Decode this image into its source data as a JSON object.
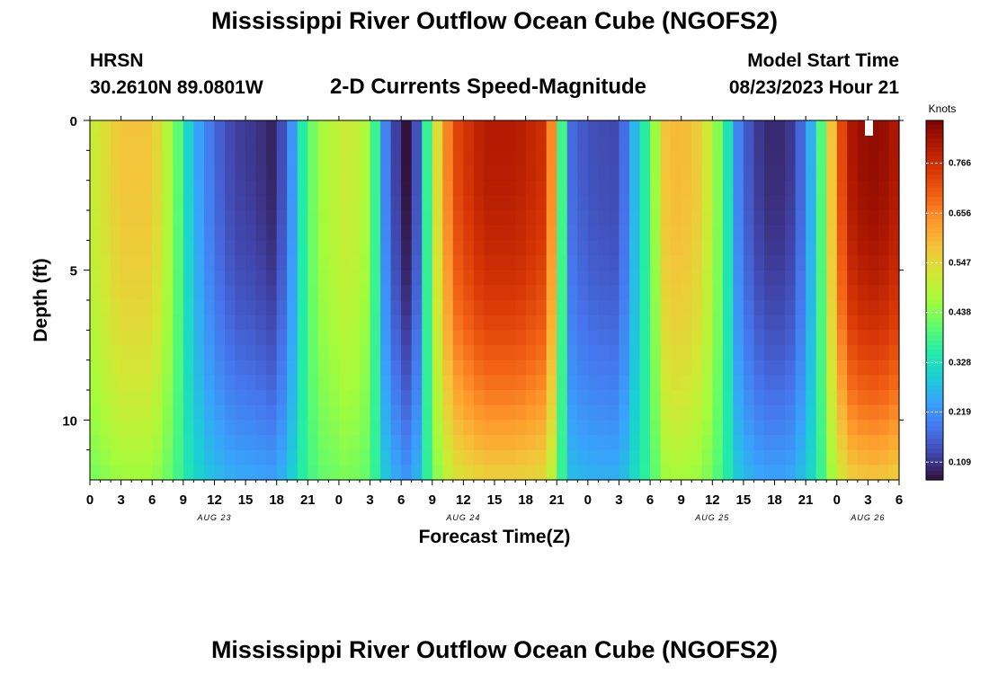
{
  "header": {
    "title": "Mississippi River Outflow Ocean Cube (NGOFS2)",
    "station": "HRSN",
    "latlon": "30.2610N  89.0801W",
    "subtitle": "2-D Currents Speed-Magnitude",
    "model_label": "Model Start Time",
    "model_time": "08/23/2023 Hour 21"
  },
  "footer": {
    "title": "Mississippi River Outflow Ocean Cube (NGOFS2)"
  },
  "colors": {
    "colormap": [
      "#30123b",
      "#4145ab",
      "#4675ed",
      "#39a2fc",
      "#1bcfd4",
      "#24eca6",
      "#61fc6c",
      "#a4fc3b",
      "#d1e834",
      "#f3c63a",
      "#fe9b2d",
      "#f36315",
      "#d93806",
      "#b11901",
      "#7a0402"
    ]
  },
  "chart_data": {
    "type": "heatmap",
    "title": "2-D Currents Speed-Magnitude",
    "xlabel": "Forecast Time(Z)",
    "ylabel": "Depth (ft)",
    "x_range_hours": [
      0,
      78
    ],
    "y_range_ft": [
      0,
      12
    ],
    "x_ticks": [
      {
        "h": 0,
        "label": "0"
      },
      {
        "h": 3,
        "label": "3"
      },
      {
        "h": 6,
        "label": "6"
      },
      {
        "h": 9,
        "label": "9"
      },
      {
        "h": 12,
        "label": "12"
      },
      {
        "h": 15,
        "label": "15"
      },
      {
        "h": 18,
        "label": "18"
      },
      {
        "h": 21,
        "label": "21"
      },
      {
        "h": 24,
        "label": "0"
      },
      {
        "h": 27,
        "label": "3"
      },
      {
        "h": 30,
        "label": "6"
      },
      {
        "h": 33,
        "label": "9"
      },
      {
        "h": 36,
        "label": "12"
      },
      {
        "h": 39,
        "label": "15"
      },
      {
        "h": 42,
        "label": "18"
      },
      {
        "h": 45,
        "label": "21"
      },
      {
        "h": 48,
        "label": "0"
      },
      {
        "h": 51,
        "label": "3"
      },
      {
        "h": 54,
        "label": "6"
      },
      {
        "h": 57,
        "label": "9"
      },
      {
        "h": 60,
        "label": "12"
      },
      {
        "h": 63,
        "label": "15"
      },
      {
        "h": 66,
        "label": "18"
      },
      {
        "h": 69,
        "label": "21"
      },
      {
        "h": 72,
        "label": "0"
      },
      {
        "h": 75,
        "label": "3"
      },
      {
        "h": 78,
        "label": "6"
      }
    ],
    "date_labels": [
      {
        "h": 12,
        "label": "AUG 23"
      },
      {
        "h": 36,
        "label": "AUG 24"
      },
      {
        "h": 60,
        "label": "AUG 25"
      },
      {
        "h": 75,
        "label": "AUG 26"
      }
    ],
    "y_ticks": [
      {
        "v": 0,
        "label": "0"
      },
      {
        "v": 5,
        "label": "5"
      },
      {
        "v": 10,
        "label": "10"
      }
    ],
    "colorbar": {
      "unit": "Knots",
      "min": 0.07,
      "max": 0.86,
      "ticks": [
        0.109,
        0.219,
        0.328,
        0.438,
        0.547,
        0.656,
        0.766
      ]
    },
    "surface_profile": [
      [
        0,
        0.5
      ],
      [
        3,
        0.58
      ],
      [
        6,
        0.58
      ],
      [
        8,
        0.45
      ],
      [
        10,
        0.26
      ],
      [
        12,
        0.17
      ],
      [
        14,
        0.12
      ],
      [
        16,
        0.11
      ],
      [
        17.5,
        0.09
      ],
      [
        19,
        0.16
      ],
      [
        20.5,
        0.35
      ],
      [
        22,
        0.46
      ],
      [
        25,
        0.52
      ],
      [
        27,
        0.46
      ],
      [
        28.5,
        0.2
      ],
      [
        29.5,
        0.12
      ],
      [
        30.5,
        0.07
      ],
      [
        31.5,
        0.14
      ],
      [
        33,
        0.48
      ],
      [
        35,
        0.72
      ],
      [
        38,
        0.8
      ],
      [
        41,
        0.8
      ],
      [
        44,
        0.76
      ],
      [
        45.2,
        0.5
      ],
      [
        46,
        0.18
      ],
      [
        48,
        0.14
      ],
      [
        51,
        0.13
      ],
      [
        54,
        0.4
      ],
      [
        55.5,
        0.58
      ],
      [
        57,
        0.6
      ],
      [
        59,
        0.56
      ],
      [
        61,
        0.4
      ],
      [
        62.5,
        0.2
      ],
      [
        64,
        0.12
      ],
      [
        66,
        0.09
      ],
      [
        68,
        0.12
      ],
      [
        70,
        0.3
      ],
      [
        71.5,
        0.58
      ],
      [
        73,
        0.8
      ],
      [
        75,
        0.84
      ],
      [
        76.5,
        0.83
      ],
      [
        78,
        0.8
      ]
    ]
  }
}
